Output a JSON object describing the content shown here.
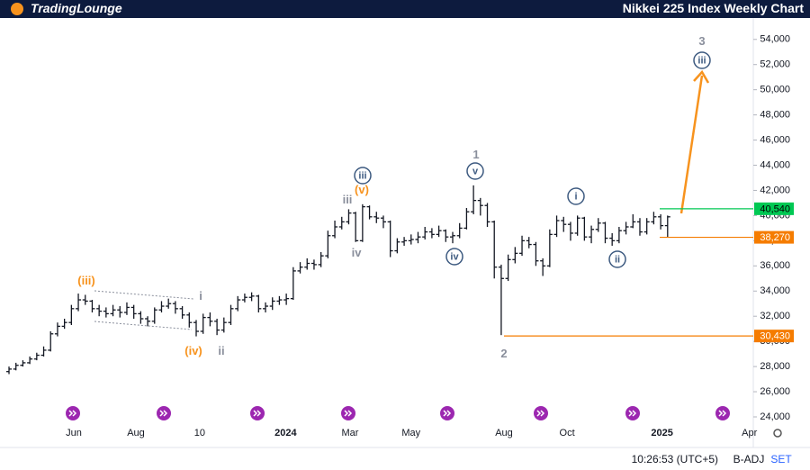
{
  "header": {
    "brand": "TradingLounge"
  },
  "footer": {
    "time": "10:26:53 (UTC+5)",
    "adjust": "B-ADJ",
    "session": "SET"
  },
  "chart_data": {
    "type": "ohlc",
    "title": "Nikkei 225 Index Weekly Chart",
    "color": "#131722",
    "open": [
      27600,
      27800,
      28100,
      28300,
      28600,
      28900,
      29300,
      30600,
      31200,
      31500,
      32600,
      33300,
      33200,
      32600,
      32400,
      32200,
      32500,
      32300,
      32700,
      32200,
      31800,
      31600,
      32500,
      32800,
      33000,
      32600,
      32100,
      31500,
      30800,
      31900,
      31600,
      30900,
      31500,
      32600,
      33300,
      33500,
      33600,
      32600,
      32800,
      33200,
      33300,
      33400,
      35600,
      35900,
      36200,
      36100,
      36800,
      38400,
      39100,
      39500,
      40200,
      38000,
      40700,
      39900,
      39800,
      39500,
      37200,
      37900,
      38000,
      38100,
      38300,
      38700,
      38500,
      38800,
      38300,
      38400,
      39000,
      40300,
      41200,
      40800,
      39500,
      35900,
      35000,
      36500,
      37000,
      38000,
      37700,
      36400,
      36000,
      38500,
      39600,
      39300,
      38600,
      39800,
      38300,
      38900,
      39400,
      38200,
      38000,
      38800,
      39100,
      39500,
      38700,
      39500,
      39900,
      39200
    ],
    "high": [
      28000,
      28300,
      28500,
      28800,
      29100,
      29600,
      30800,
      31500,
      31800,
      32900,
      33800,
      33700,
      33300,
      32900,
      32700,
      32900,
      32800,
      33100,
      32900,
      32400,
      32000,
      32700,
      33200,
      33400,
      33200,
      32800,
      32300,
      31700,
      32200,
      32300,
      31800,
      31900,
      32900,
      33600,
      33800,
      33900,
      33700,
      33100,
      33500,
      33600,
      33800,
      35900,
      36300,
      36600,
      36500,
      37100,
      38800,
      39600,
      39900,
      40500,
      40300,
      40900,
      40800,
      40300,
      40000,
      39600,
      38200,
      38300,
      38500,
      38700,
      39100,
      39000,
      39200,
      38900,
      38700,
      39400,
      40600,
      42400,
      41400,
      41000,
      39600,
      36100,
      36900,
      37500,
      38400,
      38300,
      37900,
      36600,
      38900,
      40000,
      39900,
      39500,
      40000,
      39900,
      39200,
      39800,
      39500,
      38600,
      39100,
      39500,
      40100,
      39800,
      39800,
      40300,
      40100,
      40000
    ],
    "low": [
      27400,
      27700,
      28000,
      28200,
      28500,
      28800,
      29200,
      30400,
      31000,
      31300,
      32400,
      32900,
      32300,
      32000,
      31900,
      32000,
      31900,
      32100,
      31800,
      31400,
      31200,
      31400,
      32300,
      32600,
      32200,
      31800,
      31100,
      30400,
      30600,
      31200,
      30500,
      30700,
      31300,
      32400,
      33100,
      33200,
      32300,
      32300,
      32500,
      32900,
      32900,
      33300,
      35400,
      35700,
      35700,
      35900,
      36600,
      38200,
      38900,
      39300,
      37900,
      37900,
      39700,
      39400,
      39000,
      36700,
      37000,
      37600,
      37700,
      37800,
      38100,
      38200,
      38300,
      37900,
      37800,
      38200,
      38900,
      40100,
      40000,
      39100,
      35000,
      30500,
      34800,
      36200,
      36800,
      37400,
      36000,
      35200,
      35900,
      38300,
      38700,
      38000,
      38400,
      38000,
      37800,
      38700,
      37800,
      37600,
      37800,
      38500,
      39000,
      38400,
      38500,
      39300,
      38900,
      38300
    ],
    "close": [
      27800,
      28100,
      28300,
      28600,
      28900,
      29300,
      30600,
      31200,
      31500,
      32600,
      33300,
      33200,
      32600,
      32400,
      32200,
      32500,
      32300,
      32700,
      32200,
      31800,
      31600,
      32500,
      32800,
      33000,
      32600,
      32100,
      31500,
      30800,
      31900,
      31600,
      30900,
      31500,
      32600,
      33300,
      33500,
      33600,
      32600,
      32800,
      33200,
      33300,
      33400,
      35600,
      35900,
      36200,
      36100,
      36800,
      38400,
      39100,
      39500,
      40200,
      38000,
      40700,
      39900,
      39800,
      39500,
      37200,
      37900,
      38000,
      38100,
      38300,
      38700,
      38500,
      38800,
      38300,
      38400,
      39000,
      40300,
      41200,
      40800,
      39500,
      35900,
      35000,
      36500,
      37000,
      38000,
      37700,
      36400,
      36000,
      38500,
      39600,
      39300,
      38600,
      39800,
      38300,
      38900,
      39400,
      38200,
      38000,
      38800,
      39100,
      39500,
      38700,
      39500,
      39900,
      39200,
      39900
    ],
    "xlim": [
      -1.3,
      107.1
    ],
    "xticks": [
      {
        "value": 9.35,
        "label": "Jun"
      },
      {
        "value": 18.3,
        "label": "Aug"
      },
      {
        "value": 27.5,
        "label": "10"
      },
      {
        "value": 39.9,
        "label": "2024"
      },
      {
        "value": 49.2,
        "label": "Mar"
      },
      {
        "value": 58,
        "label": "May"
      },
      {
        "value": 71.4,
        "label": "Aug"
      },
      {
        "value": 80.5,
        "label": "Oct"
      },
      {
        "value": 94.2,
        "label": "2025"
      },
      {
        "value": 106.8,
        "label": "Apr"
      }
    ],
    "ylim": [
      23500,
      55700
    ],
    "yticks": [
      {
        "value": 24000,
        "label": "24,000"
      },
      {
        "value": 26000,
        "label": "26,000"
      },
      {
        "value": 28000,
        "label": "28,000"
      },
      {
        "value": 30000,
        "label": "30,000"
      },
      {
        "value": 32000,
        "label": "32,000"
      },
      {
        "value": 34000,
        "label": "34,000"
      },
      {
        "value": 36000,
        "label": "36,000"
      },
      {
        "value": 38000,
        "label": "38,000"
      },
      {
        "value": 40000,
        "label": "40,000"
      },
      {
        "value": 42000,
        "label": "42,000"
      },
      {
        "value": 44000,
        "label": "44,000"
      },
      {
        "value": 46000,
        "label": "46,000"
      },
      {
        "value": 48000,
        "label": "48,000"
      },
      {
        "value": 50000,
        "label": "50,000"
      },
      {
        "value": 52000,
        "label": "52,000"
      },
      {
        "value": 54000,
        "label": "54,000"
      }
    ],
    "levels": [
      {
        "value": 40540,
        "label": "40,540",
        "color": "#00c853"
      },
      {
        "value": 38270,
        "label": "38,270",
        "color": "#f57c00"
      },
      {
        "value": 30430,
        "label": "30,430",
        "color": "#f57c00"
      }
    ],
    "annotations": [
      "(iii)",
      "i",
      "(iv)",
      "ii",
      "iii",
      "(v)",
      "iii",
      "iv",
      "v",
      "1",
      "iv",
      "2",
      "i",
      "ii",
      "3",
      "iii"
    ]
  }
}
